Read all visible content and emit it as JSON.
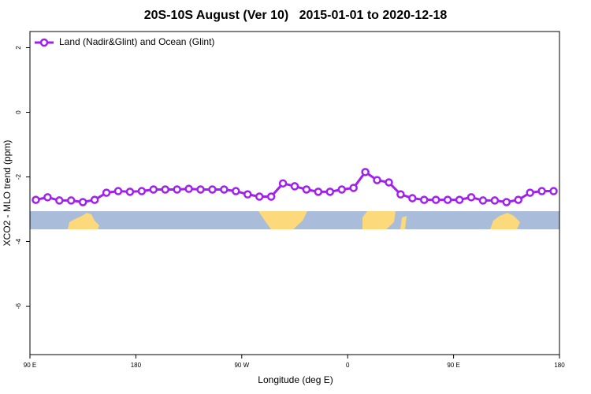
{
  "chart_data": {
    "type": "line",
    "title": "20S-10S August (Ver 10)   2015-01-01 to 2020-12-18",
    "x_label": "Longitude (deg E)",
    "y_label": "XCO2 - MLO trend (ppm)",
    "x": [
      95,
      105,
      115,
      125,
      135,
      145,
      155,
      165,
      175,
      185,
      195,
      205,
      215,
      225,
      235,
      245,
      255,
      265,
      275,
      285,
      295,
      305,
      315,
      325,
      335,
      345,
      355,
      365,
      375,
      385,
      395,
      405,
      415,
      425,
      435,
      445,
      455,
      465,
      475,
      485,
      495,
      505,
      515,
      525,
      535
    ],
    "series": [
      {
        "name": "Land (Nadir&Glint) and Ocean (Glint)",
        "color": "#a020f0",
        "values": [
          -2.71,
          -2.63,
          -2.73,
          -2.73,
          -2.78,
          -2.71,
          -2.49,
          -2.44,
          -2.46,
          -2.44,
          -2.39,
          -2.39,
          -2.39,
          -2.37,
          -2.39,
          -2.39,
          -2.39,
          -2.44,
          -2.54,
          -2.61,
          -2.61,
          -2.2,
          -2.29,
          -2.39,
          -2.46,
          -2.46,
          -2.39,
          -2.34,
          -1.85,
          -2.1,
          -2.17,
          -2.54,
          -2.66,
          -2.71,
          -2.71,
          -2.71,
          -2.71,
          -2.63,
          -2.73,
          -2.73,
          -2.78,
          -2.71,
          -2.49,
          -2.44,
          -2.44
        ]
      }
    ],
    "xlim": [
      90,
      540
    ],
    "xticks": [
      {
        "value": 90,
        "label": "90 E"
      },
      180,
      {
        "value": 270,
        "label": "90 W"
      },
      {
        "value": 360,
        "label": "0"
      },
      {
        "value": 450,
        "label": "90 E"
      },
      180
    ],
    "ylim": [
      -7.5,
      2.5
    ],
    "yticks": [
      -6,
      -4,
      -2,
      0,
      2
    ],
    "legend": "top-left"
  }
}
